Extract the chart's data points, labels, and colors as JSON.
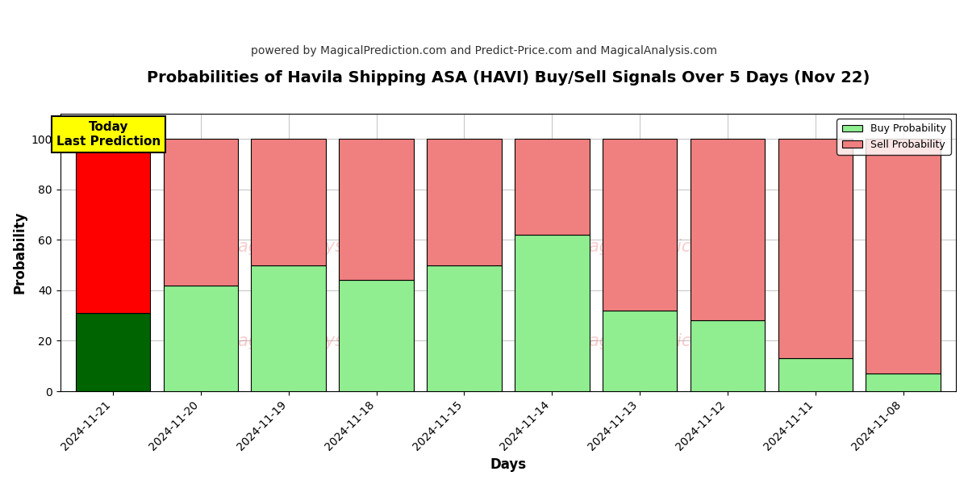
{
  "title": "Probabilities of Havila Shipping ASA (HAVI) Buy/Sell Signals Over 5 Days (Nov 22)",
  "subtitle": "powered by MagicalPrediction.com and Predict-Price.com and MagicalAnalysis.com",
  "xlabel": "Days",
  "ylabel": "Probability",
  "dates": [
    "2024-11-21",
    "2024-11-20",
    "2024-11-19",
    "2024-11-18",
    "2024-11-15",
    "2024-11-14",
    "2024-11-13",
    "2024-11-12",
    "2024-11-11",
    "2024-11-08"
  ],
  "buy_values": [
    31,
    42,
    50,
    44,
    50,
    62,
    32,
    28,
    13,
    7
  ],
  "sell_values": [
    69,
    58,
    50,
    56,
    50,
    38,
    68,
    72,
    87,
    93
  ],
  "today_buy_color": "#006400",
  "today_sell_color": "#FF0000",
  "buy_color": "#90EE90",
  "sell_color": "#F08080",
  "bar_edge_color": "#000000",
  "today_annotation_bg": "#FFFF00",
  "today_annotation_text": "Today\nLast Prediction",
  "legend_buy_label": "Buy Probability",
  "legend_sell_label": "Sell Probability",
  "ylim": [
    0,
    110
  ],
  "dashed_line_y": 110,
  "background_color": "#FFFFFF",
  "grid_color": "#AAAAAA",
  "title_fontsize": 14,
  "subtitle_fontsize": 10,
  "axis_label_fontsize": 12,
  "tick_fontsize": 10,
  "bar_width": 0.85
}
